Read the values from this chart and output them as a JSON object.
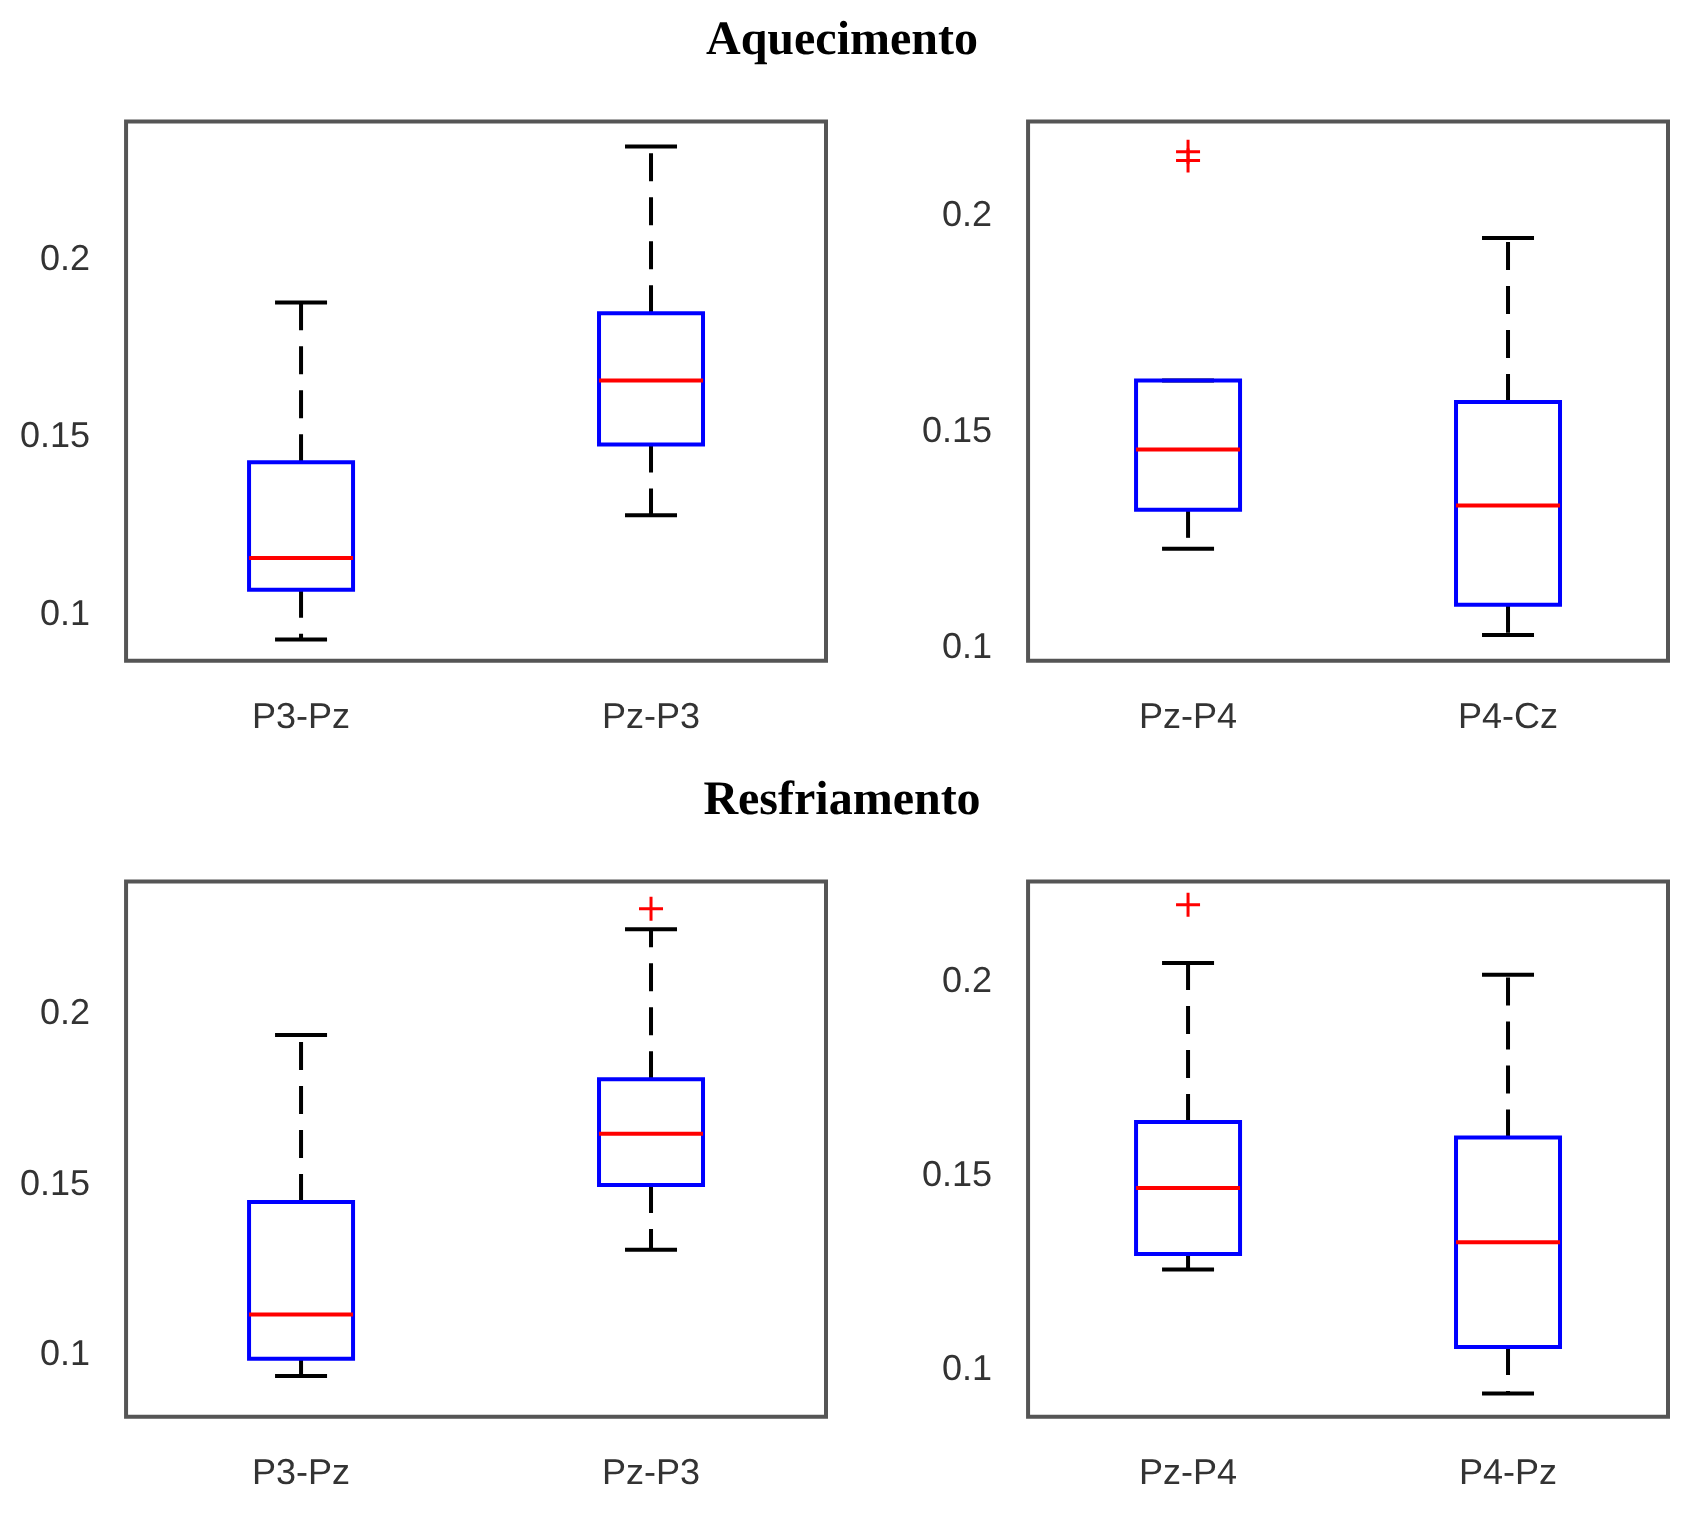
{
  "chart_data": [
    {
      "type": "box",
      "title": "Aquecimento",
      "categories": [
        "P3-Pz",
        "Pz-P3"
      ],
      "ylim": [
        0.087,
        0.239
      ],
      "yticks": [
        0.1,
        0.15,
        0.2
      ],
      "series": [
        {
          "color": "#0000ff",
          "boxes": [
            {
              "low": 0.093,
              "q1": 0.107,
              "median": 0.116,
              "q3": 0.143,
              "high": 0.188
            },
            {
              "low": 0.128,
              "q1": 0.148,
              "median": 0.166,
              "q3": 0.185,
              "high": 0.232
            }
          ]
        }
      ]
    },
    {
      "type": "box",
      "categories": [
        "Pz-P4",
        "P4-Cz"
      ],
      "ylim": [
        0.097,
        0.222
      ],
      "yticks": [
        0.1,
        0.15,
        0.2
      ],
      "series": [
        {
          "color": "#0000ff",
          "boxes": [
            {
              "low": 0.123,
              "q1": 0.132,
              "median": 0.146,
              "q3": 0.162,
              "high": 0.162,
              "outliers": [
                0.213,
                0.215
              ]
            },
            {
              "low": 0.103,
              "q1": 0.11,
              "median": 0.133,
              "q3": 0.157,
              "high": 0.195
            }
          ]
        }
      ]
    },
    {
      "type": "box",
      "title": "Resfriamento",
      "categories": [
        "P3-Pz",
        "Pz-P3"
      ],
      "ylim": [
        0.082,
        0.239
      ],
      "yticks": [
        0.1,
        0.15,
        0.2
      ],
      "series": [
        {
          "color": "#0000ff",
          "boxes": [
            {
              "low": 0.094,
              "q1": 0.099,
              "median": 0.112,
              "q3": 0.145,
              "high": 0.194
            },
            {
              "low": 0.131,
              "q1": 0.15,
              "median": 0.165,
              "q3": 0.181,
              "high": 0.225,
              "outliers": [
                0.231
              ]
            }
          ]
        }
      ]
    },
    {
      "type": "box",
      "categories": [
        "Pz-P4",
        "P4-Pz"
      ],
      "ylim": [
        0.088,
        0.226
      ],
      "yticks": [
        0.1,
        0.15,
        0.2
      ],
      "series": [
        {
          "color": "#0000ff",
          "boxes": [
            {
              "low": 0.126,
              "q1": 0.13,
              "median": 0.147,
              "q3": 0.164,
              "high": 0.205,
              "outliers": [
                0.22
              ]
            },
            {
              "low": 0.094,
              "q1": 0.106,
              "median": 0.133,
              "q3": 0.16,
              "high": 0.202
            }
          ]
        }
      ]
    }
  ]
}
